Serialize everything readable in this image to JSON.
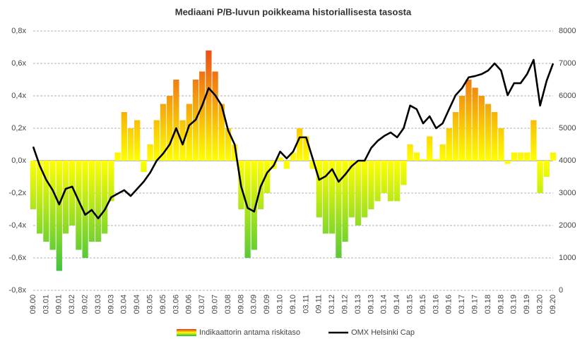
{
  "chart_data": {
    "type": "bar",
    "title": "Mediaani P/B-luvun poikkeama historiallisesta tasosta",
    "categories": [
      "09.00",
      null,
      "03.01",
      null,
      "09.01",
      null,
      "03.02",
      null,
      "09.02",
      null,
      "03.03",
      null,
      "09.03",
      null,
      "03.04",
      null,
      "09.04",
      null,
      "03.05",
      null,
      "09.05",
      null,
      "03.06",
      null,
      "09.06",
      null,
      "03.07",
      null,
      "09.07",
      null,
      "03.08",
      null,
      "09.08",
      null,
      "03.09",
      null,
      "09.09",
      null,
      "03.10",
      null,
      "09.10",
      null,
      "03.11",
      null,
      "09.11",
      null,
      "03.12",
      null,
      "09.12",
      null,
      "03.13",
      null,
      "09.13",
      null,
      "03.14",
      null,
      "09.14",
      null,
      "03.15",
      null,
      "09.15",
      null,
      "03.16",
      null,
      "09.16",
      null,
      "03.17",
      null,
      "09.17",
      null,
      "03.18",
      null,
      "09.18",
      null,
      "03.19",
      null,
      "09.19",
      null,
      "03.20",
      null,
      "09.20"
    ],
    "series": [
      {
        "name": "Indikaattorin antama riskitaso",
        "type": "bar",
        "colors": [
          "#e8301c",
          "#ffff00",
          "#22b84c"
        ],
        "values": [
          -0.3,
          -0.45,
          -0.5,
          -0.55,
          -0.68,
          -0.45,
          -0.4,
          -0.55,
          -0.6,
          -0.5,
          -0.5,
          -0.45,
          -0.25,
          0.05,
          0.3,
          0.2,
          0.25,
          -0.07,
          0.1,
          0.25,
          0.35,
          0.4,
          0.5,
          0.25,
          0.35,
          0.5,
          0.55,
          0.68,
          0.55,
          0.35,
          0.2,
          0.1,
          -0.3,
          -0.6,
          -0.55,
          -0.3,
          -0.2,
          -0.05,
          0.02,
          -0.05,
          0.05,
          0.2,
          0.15,
          -0.05,
          -0.35,
          -0.45,
          -0.45,
          -0.6,
          -0.5,
          -0.35,
          -0.4,
          -0.35,
          -0.3,
          -0.25,
          -0.2,
          -0.25,
          -0.25,
          -0.15,
          0.1,
          0.05,
          0.01,
          0.15,
          0.01,
          0.1,
          0.2,
          0.3,
          0.4,
          0.5,
          0.45,
          0.4,
          0.35,
          0.3,
          0.2,
          -0.02,
          0.05,
          0.05,
          0.05,
          0.25,
          -0.2,
          -0.1,
          0.05
        ]
      },
      {
        "name": "OMX Helsinki Cap",
        "type": "line",
        "color": "#000000",
        "axis": "y2",
        "values": [
          4430,
          3850,
          3410,
          3090,
          2650,
          3130,
          3200,
          2760,
          2330,
          2480,
          2220,
          2480,
          2870,
          2980,
          3090,
          2910,
          3130,
          3350,
          3630,
          4000,
          4220,
          4500,
          5000,
          4500,
          5090,
          5260,
          5700,
          6240,
          6020,
          5700,
          4930,
          4500,
          3200,
          2540,
          2430,
          3200,
          3630,
          3850,
          4280,
          4070,
          4280,
          4720,
          4720,
          4070,
          3410,
          3520,
          3740,
          3350,
          3570,
          3830,
          4000,
          4000,
          4390,
          4610,
          4760,
          4870,
          4720,
          5000,
          5700,
          5590,
          5150,
          5370,
          5000,
          5150,
          5590,
          6020,
          6240,
          6570,
          6610,
          6670,
          6780,
          7000,
          6780,
          6020,
          6390,
          6390,
          6670,
          7110,
          5700,
          6460,
          7000
        ]
      }
    ],
    "ylim": [
      -0.8,
      0.8
    ],
    "yticks": [
      {
        "value": -0.8,
        "label": "-0,8x"
      },
      {
        "value": -0.6,
        "label": "-0,6x"
      },
      {
        "value": -0.4,
        "label": "-0,4x"
      },
      {
        "value": -0.2,
        "label": "-0,2x"
      },
      {
        "value": 0,
        "label": "0,0x"
      },
      {
        "value": 0.2,
        "label": "0,2x"
      },
      {
        "value": 0.4,
        "label": "0,4x"
      },
      {
        "value": 0.6,
        "label": "0,6x"
      },
      {
        "value": 0.8,
        "label": "0,8x"
      }
    ],
    "y2lim": [
      0,
      8000
    ],
    "y2ticks": [
      0,
      1000,
      2000,
      3000,
      4000,
      5000,
      6000,
      7000,
      8000
    ],
    "grid": true,
    "legend": "bottom"
  }
}
